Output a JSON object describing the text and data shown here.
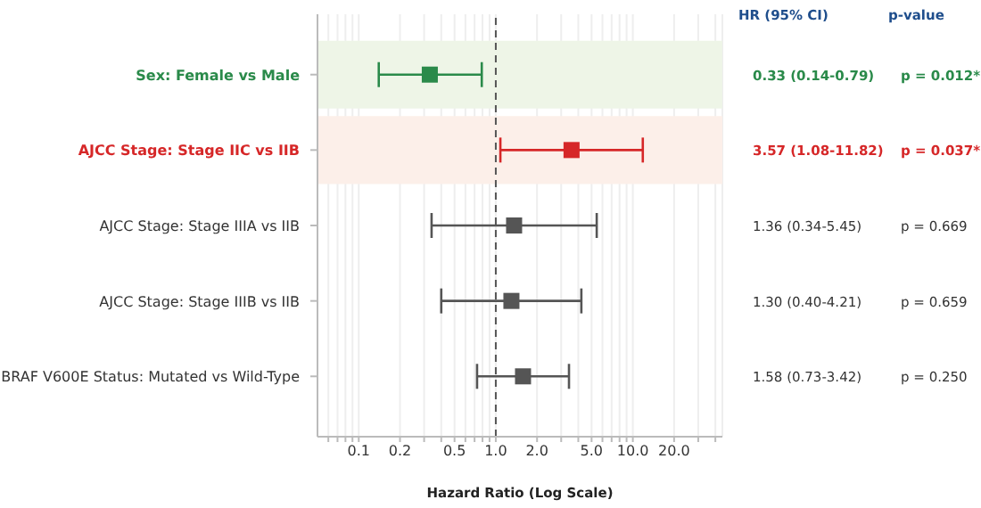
{
  "chart_data": {
    "type": "scatter",
    "orientation": "horizontal",
    "xlabel": "Hazard Ratio (Log Scale)",
    "categories": [
      "Sex: Female vs Male",
      "AJCC Stage: Stage IIC vs IIB",
      "AJCC Stage: Stage IIIA vs IIB",
      "AJCC Stage: Stage IIIB vs IIB",
      "BRAF V600E Status: Mutated vs Wild-Type"
    ],
    "values": [
      0.33,
      3.57,
      1.36,
      1.3,
      1.58
    ],
    "errors": [
      [
        0.14,
        0.79
      ],
      [
        1.08,
        11.82
      ],
      [
        0.34,
        5.45
      ],
      [
        0.4,
        4.21
      ],
      [
        0.73,
        3.42
      ]
    ],
    "colors": [
      "#2a8a4a",
      "#d62728",
      "#555555",
      "#555555",
      "#555555"
    ],
    "annotations": [
      "HR (95% CI)",
      "p-value",
      "0.33 (0.14-0.79)",
      "p = 0.012*",
      "3.57 (1.08-11.82)",
      "p = 0.037*",
      "1.36 (0.34-5.45)",
      "p = 0.669",
      "1.30 (0.40-4.21)",
      "p = 0.659",
      "1.58 (0.73-3.42)",
      "p = 0.250"
    ],
    "bands": [
      {
        "axis": "y",
        "from": "Sex: Female vs Male",
        "to": "Sex: Female vs Male",
        "color": "#eef5e7"
      },
      {
        "axis": "y",
        "from": "AJCC Stage: Stage IIC vs IIB",
        "to": "AJCC Stage: Stage IIC vs IIB",
        "color": "#fcefe9"
      }
    ],
    "ref_lines": [
      {
        "axis": "x",
        "value": 1,
        "color": "#555555",
        "line_style": "dashed"
      }
    ],
    "log": "x",
    "xlim": [
      0.05,
      45
    ],
    "xticks": [
      {
        "value": 0.06,
        "label": null
      },
      {
        "value": 0.07,
        "label": null
      },
      {
        "value": 0.08,
        "label": null
      },
      {
        "value": 0.09,
        "label": null
      },
      {
        "value": 0.1,
        "label": "0.1"
      },
      {
        "value": 0.2,
        "label": "0.2"
      },
      {
        "value": 0.3,
        "label": null
      },
      {
        "value": 0.4,
        "label": null
      },
      {
        "value": 0.5,
        "label": "0.5"
      },
      {
        "value": 0.6,
        "label": null
      },
      {
        "value": 0.7,
        "label": null
      },
      {
        "value": 0.8,
        "label": null
      },
      {
        "value": 0.9,
        "label": null
      },
      {
        "value": 1,
        "label": "1.0"
      },
      {
        "value": 2,
        "label": "2.0"
      },
      {
        "value": 3,
        "label": null
      },
      {
        "value": 4,
        "label": null
      },
      {
        "value": 5,
        "label": "5.0"
      },
      {
        "value": 6,
        "label": null
      },
      {
        "value": 7,
        "label": null
      },
      {
        "value": 8,
        "label": null
      },
      {
        "value": 9,
        "label": null
      },
      {
        "value": 10,
        "label": "10.0"
      },
      {
        "value": 20,
        "label": "20.0"
      },
      {
        "value": 30,
        "label": null
      },
      {
        "value": 40,
        "label": null
      }
    ],
    "grid": "x",
    "marker": "square"
  }
}
